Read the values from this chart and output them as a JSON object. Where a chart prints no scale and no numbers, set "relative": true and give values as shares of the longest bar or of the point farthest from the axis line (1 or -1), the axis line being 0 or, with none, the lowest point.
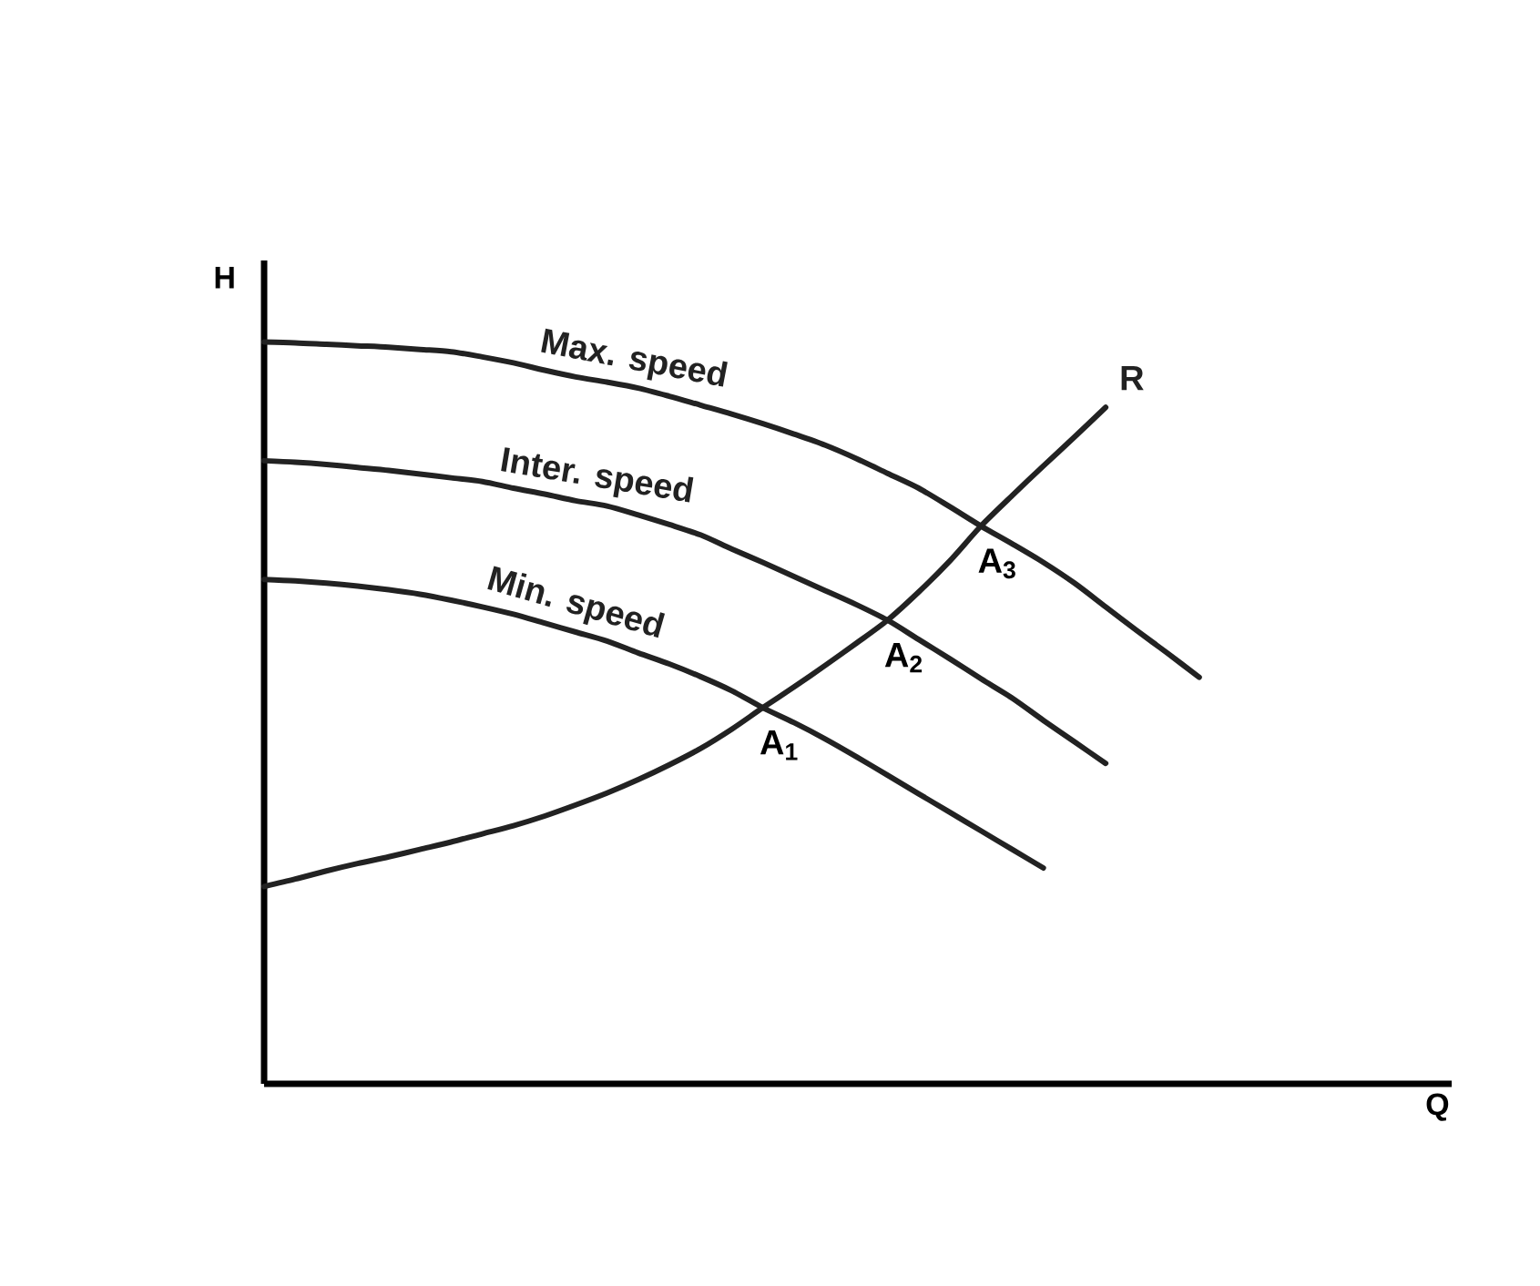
{
  "chart_data": {
    "type": "line",
    "ylabel": "H",
    "relative": true,
    "categories": [
      null,
      null,
      null,
      null,
      null,
      null,
      null,
      null,
      null,
      null,
      null,
      null,
      null,
      null,
      null,
      null,
      null,
      null,
      null,
      null,
      null,
      null,
      null,
      null,
      null,
      null,
      null,
      null,
      null,
      null,
      null
    ],
    "series": [
      {
        "name": "Max. speed",
        "color": "#222222",
        "values": [
          1,
          0.999,
          0.997,
          0.995,
          0.993,
          0.99,
          0.987,
          0.98,
          0.972,
          0.962,
          0.953,
          0.946,
          0.938,
          0.927,
          0.915,
          0.903,
          0.89,
          0.876,
          0.861,
          0.843,
          0.823,
          0.803,
          0.778,
          0.752,
          0.728,
          0.703,
          0.675,
          0.643,
          0.611,
          0.58,
          0.548
        ]
      },
      {
        "name": "Inter. speed",
        "color": "#222222",
        "values": [
          0.84,
          0.838,
          0.835,
          0.831,
          0.827,
          0.822,
          0.817,
          0.812,
          0.803,
          0.795,
          0.786,
          0.779,
          0.767,
          0.754,
          0.74,
          0.721,
          0.703,
          0.684,
          0.665,
          0.646,
          0.625,
          0.599,
          0.573,
          0.546,
          0.52,
          0.49,
          0.461,
          0.432,
          null,
          null,
          null
        ]
      },
      {
        "name": "Min. speed",
        "color": "#222222",
        "values": [
          0.68,
          0.678,
          0.675,
          0.671,
          0.666,
          0.66,
          0.652,
          0.643,
          0.633,
          0.621,
          0.609,
          0.597,
          0.581,
          0.566,
          0.549,
          0.53,
          0.507,
          0.487,
          0.465,
          0.441,
          0.416,
          0.391,
          0.366,
          0.341,
          0.316,
          0.291,
          null,
          null,
          null,
          null,
          null
        ]
      },
      {
        "name": "R",
        "color": "#222222",
        "values": [
          0.266,
          0.276,
          0.287,
          0.297,
          0.306,
          0.316,
          0.326,
          0.337,
          0.348,
          0.361,
          0.376,
          0.392,
          0.41,
          0.43,
          0.452,
          0.478,
          0.507,
          0.535,
          0.564,
          0.594,
          0.625,
          0.663,
          0.705,
          0.752,
          0.793,
          0.833,
          0.872,
          0.912,
          null,
          null,
          null
        ]
      }
    ],
    "annotations": [
      "A$_{1}$",
      "A$_{2}$",
      "A$_{3}$",
      "Q"
    ]
  }
}
